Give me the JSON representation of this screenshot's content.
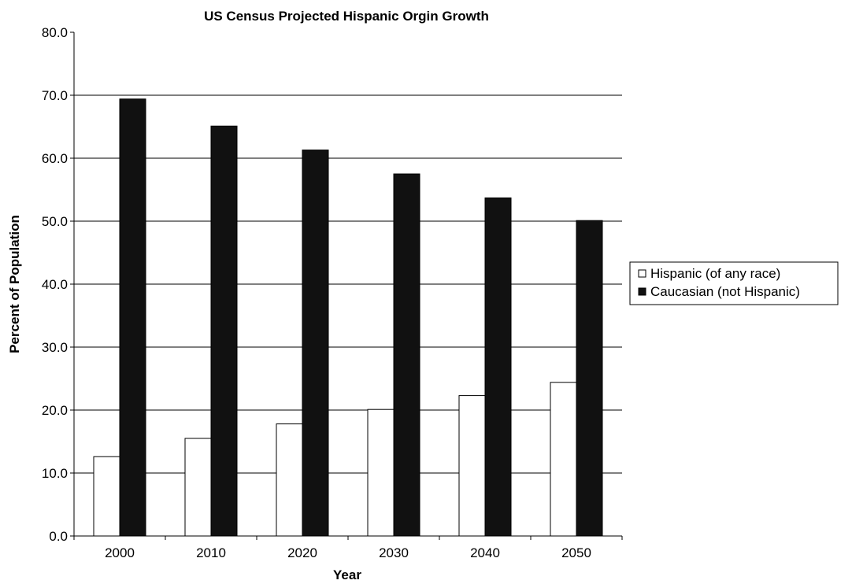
{
  "chart_data": {
    "type": "bar",
    "title": "US Census Projected Hispanic Orgin Growth",
    "xlabel": "Year",
    "ylabel": "Percent of Population",
    "categories": [
      "2000",
      "2010",
      "2020",
      "2030",
      "2040",
      "2050"
    ],
    "series": [
      {
        "name": "Hispanic (of any race)",
        "values": [
          12.6,
          15.5,
          17.8,
          20.1,
          22.3,
          24.4
        ],
        "color": "#ffffff"
      },
      {
        "name": "Caucasian (not Hispanic)",
        "values": [
          69.4,
          65.1,
          61.3,
          57.5,
          53.7,
          50.1
        ],
        "color": "#111111"
      }
    ],
    "ylim": [
      0,
      80
    ],
    "yticks": [
      "0.0",
      "10.0",
      "20.0",
      "30.0",
      "40.0",
      "50.0",
      "60.0",
      "70.0",
      "80.0"
    ],
    "grid": true,
    "legend_position": "right"
  }
}
